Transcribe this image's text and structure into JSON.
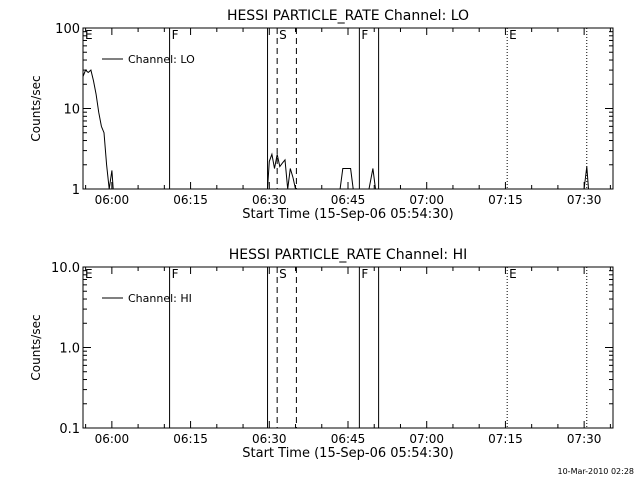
{
  "footer_timestamp": "10-Mar-2010 02:28",
  "chart_data": [
    {
      "type": "line",
      "title": "HESSI PARTICLE_RATE Channel: LO",
      "xlabel": "Start Time (15-Sep-06 05:54:30)",
      "ylabel": "Counts/sec",
      "yscale": "log",
      "xlim": [
        "05:54:30",
        "07:35:30"
      ],
      "ylim": [
        1,
        100
      ],
      "x_ticks": [
        "06:00",
        "06:15",
        "06:30",
        "06:45",
        "07:00",
        "07:15",
        "07:30"
      ],
      "y_ticks": [
        "1",
        "10",
        "100"
      ],
      "legend": "Channel: LO",
      "legend_position": "top-left",
      "markers": [
        {
          "label": "E",
          "time": "05:54:30",
          "style": "solid"
        },
        {
          "label": "F",
          "time": "06:11:00",
          "style": "solid"
        },
        {
          "label": "",
          "time": "06:29:40",
          "style": "solid"
        },
        {
          "label": "S",
          "time": "06:31:30",
          "style": "dashed"
        },
        {
          "label": "",
          "time": "06:35:10",
          "style": "dashed"
        },
        {
          "label": "F",
          "time": "06:47:10",
          "style": "solid"
        },
        {
          "label": "",
          "time": "06:50:50",
          "style": "solid"
        },
        {
          "label": "E",
          "time": "07:15:20",
          "style": "dotted"
        },
        {
          "label": "",
          "time": "07:30:30",
          "style": "dotted"
        }
      ],
      "series": [
        {
          "name": "Channel: LO",
          "segments": [
            [
              [
                "05:54:30",
                25
              ],
              [
                "05:55:00",
                30
              ],
              [
                "05:55:30",
                28
              ],
              [
                "05:56:00",
                30
              ],
              [
                "05:56:30",
                22
              ],
              [
                "05:57:00",
                15
              ],
              [
                "05:57:30",
                9
              ],
              [
                "05:58:00",
                6
              ],
              [
                "05:58:30",
                5
              ],
              [
                "05:59:00",
                2
              ],
              [
                "05:59:30",
                1
              ],
              [
                "06:00:00",
                1.7
              ],
              [
                "06:00:15",
                1
              ]
            ],
            [
              [
                "06:29:40",
                1
              ],
              [
                "06:30:00",
                2.2
              ],
              [
                "06:30:30",
                2.7
              ],
              [
                "06:31:00",
                1.8
              ],
              [
                "06:31:30",
                2.7
              ],
              [
                "06:32:00",
                1.9
              ],
              [
                "06:32:30",
                2.1
              ],
              [
                "06:33:00",
                2.3
              ],
              [
                "06:33:30",
                1
              ],
              [
                "06:34:00",
                1.8
              ],
              [
                "06:34:30",
                1.4
              ],
              [
                "06:35:00",
                1
              ]
            ],
            [
              [
                "06:43:30",
                1
              ],
              [
                "06:44:00",
                1.8
              ],
              [
                "06:45:00",
                1.8
              ],
              [
                "06:45:30",
                1.8
              ],
              [
                "06:46:00",
                1
              ]
            ],
            [
              [
                "06:49:00",
                1
              ],
              [
                "06:49:45",
                1.8
              ],
              [
                "06:50:15",
                1
              ]
            ],
            [
              [
                "07:30:00",
                1
              ],
              [
                "07:30:30",
                1.9
              ],
              [
                "07:30:50",
                1
              ]
            ]
          ]
        }
      ]
    },
    {
      "type": "line",
      "title": "HESSI PARTICLE_RATE Channel: HI",
      "xlabel": "Start Time (15-Sep-06 05:54:30)",
      "ylabel": "Counts/sec",
      "yscale": "log",
      "xlim": [
        "05:54:30",
        "07:35:30"
      ],
      "ylim": [
        0.1,
        10
      ],
      "x_ticks": [
        "06:00",
        "06:15",
        "06:30",
        "06:45",
        "07:00",
        "07:15",
        "07:30"
      ],
      "y_ticks": [
        "0.1",
        "1.0",
        "10.0"
      ],
      "legend": "Channel: HI",
      "legend_position": "top-left",
      "markers": [
        {
          "label": "E",
          "time": "05:54:30",
          "style": "solid"
        },
        {
          "label": "F",
          "time": "06:11:00",
          "style": "solid"
        },
        {
          "label": "",
          "time": "06:29:40",
          "style": "solid"
        },
        {
          "label": "S",
          "time": "06:31:30",
          "style": "dashed"
        },
        {
          "label": "",
          "time": "06:35:10",
          "style": "dashed"
        },
        {
          "label": "F",
          "time": "06:47:10",
          "style": "solid"
        },
        {
          "label": "",
          "time": "06:50:50",
          "style": "solid"
        },
        {
          "label": "E",
          "time": "07:15:20",
          "style": "dotted"
        },
        {
          "label": "",
          "time": "07:30:30",
          "style": "dotted"
        }
      ],
      "series": [
        {
          "name": "Channel: HI",
          "segments": []
        }
      ]
    }
  ]
}
